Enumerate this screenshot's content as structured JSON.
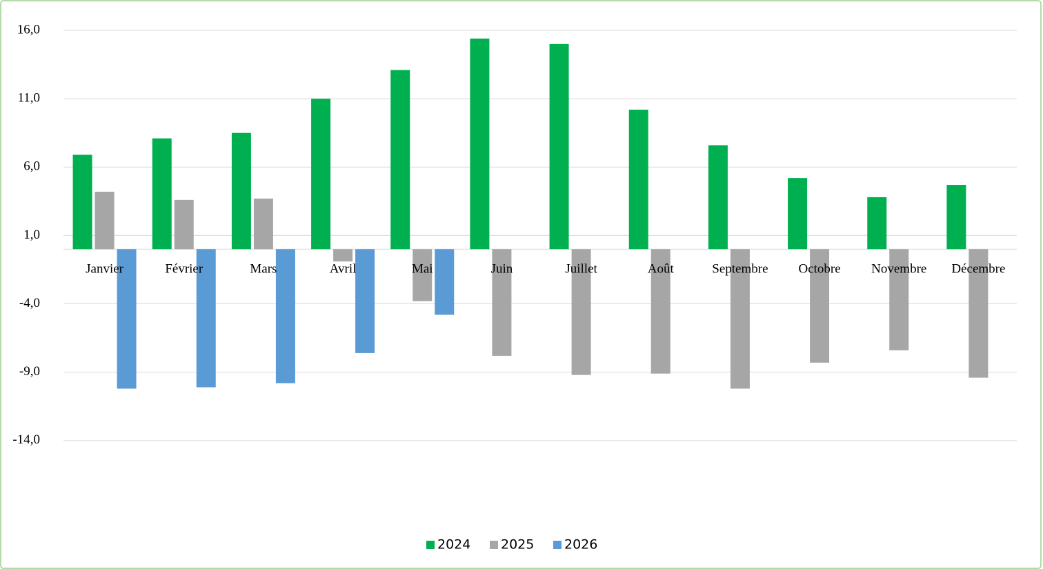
{
  "chart_data": {
    "type": "bar",
    "categories": [
      "Janvier",
      "Février",
      "Mars",
      "Avril",
      "Mai",
      "Juin",
      "Juillet",
      "Août",
      "Septembre",
      "Octobre",
      "Novembre",
      "Décembre"
    ],
    "series": [
      {
        "name": "2024",
        "color": "#00b050",
        "values": [
          6.9,
          8.1,
          8.5,
          11.0,
          13.1,
          15.4,
          15.0,
          10.2,
          7.6,
          5.2,
          3.8,
          4.7
        ]
      },
      {
        "name": "2025",
        "color": "#a6a6a6",
        "values": [
          4.2,
          3.6,
          3.7,
          -0.9,
          -3.8,
          -7.8,
          -9.2,
          -9.1,
          -10.2,
          -8.3,
          -7.4,
          -9.4
        ]
      },
      {
        "name": "2026",
        "color": "#5b9bd5",
        "values": [
          -10.2,
          -10.1,
          -9.8,
          -7.6,
          -4.8,
          null,
          null,
          null,
          null,
          null,
          null,
          null
        ]
      }
    ],
    "ylim": [
      -19,
      16
    ],
    "yticks": [
      {
        "value": -14,
        "label": "-14,0"
      },
      {
        "value": -9,
        "label": "-9,0"
      },
      {
        "value": -4,
        "label": "-4,0"
      },
      {
        "value": 1,
        "label": "1,0"
      },
      {
        "value": 6,
        "label": "6,0"
      },
      {
        "value": 11,
        "label": "11,0"
      },
      {
        "value": 16,
        "label": "16,0"
      }
    ],
    "grid": true,
    "legend": "bottom"
  }
}
